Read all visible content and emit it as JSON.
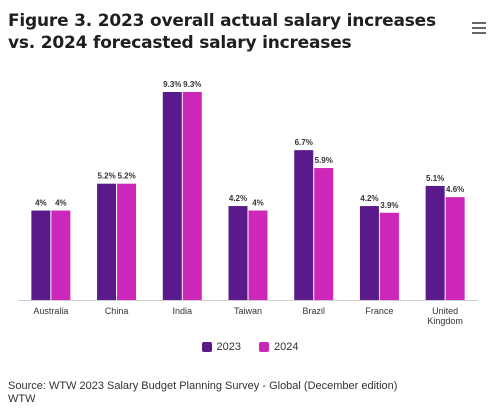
{
  "title": "Figure 3. 2023 overall actual salary increases vs. 2024 forecasted salary increases",
  "menu_icon": "hamburger-icon",
  "colors": {
    "series_2023": "#5a1a8c",
    "series_2024": "#cc27b8"
  },
  "chart_data": {
    "type": "bar",
    "categories": [
      "Australia",
      "China",
      "India",
      "Taiwan",
      "Brazil",
      "France",
      "United Kingdom"
    ],
    "category_lines": [
      [
        "Australia"
      ],
      [
        "China"
      ],
      [
        "India"
      ],
      [
        "Taiwan"
      ],
      [
        "Brazil"
      ],
      [
        "France"
      ],
      [
        "United",
        "Kingdom"
      ]
    ],
    "series": [
      {
        "name": "2023",
        "values": [
          4,
          5.2,
          9.3,
          4.2,
          6.7,
          4.2,
          5.1
        ],
        "labels": [
          "4%",
          "5.2%",
          "9.3%",
          "4.2%",
          "6.7%",
          "4.2%",
          "5.1%"
        ]
      },
      {
        "name": "2024",
        "values": [
          4,
          5.2,
          9.3,
          4,
          5.9,
          3.9,
          4.6
        ],
        "labels": [
          "4%",
          "5.2%",
          "9.3%",
          "4%",
          "5.9%",
          "3.9%",
          "4.6%"
        ]
      }
    ],
    "ylim": [
      0,
      9.3
    ],
    "grid": false,
    "legend": "bottom-center"
  },
  "source_line1": "Source: WTW 2023 Salary Budget Planning Survey - Global (December edition)",
  "source_line2": "WTW"
}
